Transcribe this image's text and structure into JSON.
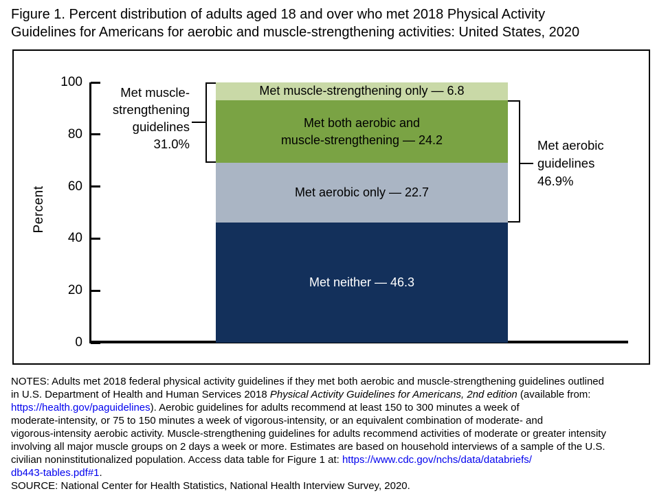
{
  "title": {
    "line1": "Figure 1. Percent distribution of adults aged 18 and over who met 2018 Physical Activity",
    "line2": "Guidelines for Americans for aerobic and muscle-strengthening activities: United States, 2020"
  },
  "chart_data": {
    "type": "bar",
    "subtype": "stacked-single-column",
    "title": "Percent distribution of adults aged 18 and over who met 2018 Physical Activity Guidelines for Americans for aerobic and muscle-strengthening activities: United States, 2020",
    "xlabel": "",
    "ylabel": "Percent",
    "ylim": [
      0,
      100
    ],
    "yticks": [
      0,
      20,
      40,
      60,
      80,
      100
    ],
    "grid": false,
    "segments": [
      {
        "name": "Met muscle-strengthening only",
        "value": 6.8,
        "color": "#c9d9a7",
        "text_color": "#000000",
        "label_lines": [
          "Met muscle-strengthening only — 6.8"
        ]
      },
      {
        "name": "Met both aerobic and muscle-strengthening",
        "value": 24.2,
        "color": "#7aa344",
        "text_color": "#000000",
        "label_lines": [
          "Met both aerobic and",
          "muscle-strengthening — 24.2"
        ]
      },
      {
        "name": "Met aerobic only",
        "value": 22.7,
        "color": "#aab5c4",
        "text_color": "#000000",
        "label_lines": [
          "Met aerobic only — 22.7"
        ]
      },
      {
        "name": "Met neither",
        "value": 46.3,
        "color": "#13305b",
        "text_color": "#ffffff",
        "label_lines": [
          "Met neither — 46.3"
        ]
      }
    ],
    "annotations": {
      "left": {
        "lines": [
          "Met muscle-",
          "strengthening",
          "guidelines",
          "31.0%"
        ],
        "total": 31.0,
        "span_from": 69.0,
        "span_to": 100.0
      },
      "right": {
        "lines": [
          "Met aerobic",
          "guidelines",
          "46.9%"
        ],
        "total": 46.9,
        "span_from": 46.3,
        "span_to": 93.2
      }
    }
  },
  "notes": {
    "lines": [
      [
        {
          "t": "NOTES: Adults met 2018 federal physical activity guidelines if they met both aerobic and muscle-strengthening guidelines outlined"
        }
      ],
      [
        {
          "t": "in U.S. Department of Health and Human Services 2018 "
        },
        {
          "t": "Physical Activity Guidelines for Americans, 2nd edition",
          "s": "italic"
        },
        {
          "t": " (available from:"
        }
      ],
      [
        {
          "t": "https://health.gov/paguidelines",
          "s": "link"
        },
        {
          "t": "). Aerobic guidelines for adults recommend at least 150 to 300 minutes a week of"
        }
      ],
      [
        {
          "t": "moderate-intensity, or 75 to 150 minutes a week of vigorous-intensity, or an equivalent combination of moderate- and"
        }
      ],
      [
        {
          "t": "vigorous-intensity aerobic activity. Muscle-strengthening guidelines for adults recommend activities of moderate or greater intensity"
        }
      ],
      [
        {
          "t": "involving all major muscle groups on 2 days a week or more. Estimates are based on household interviews of a sample of the U.S."
        }
      ],
      [
        {
          "t": "civilian noninstitutionalized population. Access data table for Figure 1 at: "
        },
        {
          "t": "https://www.cdc.gov/nchs/data/databriefs/",
          "s": "link"
        }
      ],
      [
        {
          "t": "db443-tables.pdf#1",
          "s": "link"
        },
        {
          "t": "."
        }
      ],
      [
        {
          "t": "SOURCE: National Center for Health Statistics, National Health Interview Survey, 2020."
        }
      ]
    ]
  },
  "colors": {
    "link": "#0000ee",
    "axis": "#000000",
    "navy": "#13305b",
    "green": "#7aa344",
    "light_green": "#c9d9a7",
    "blue_gray": "#aab5c4"
  }
}
